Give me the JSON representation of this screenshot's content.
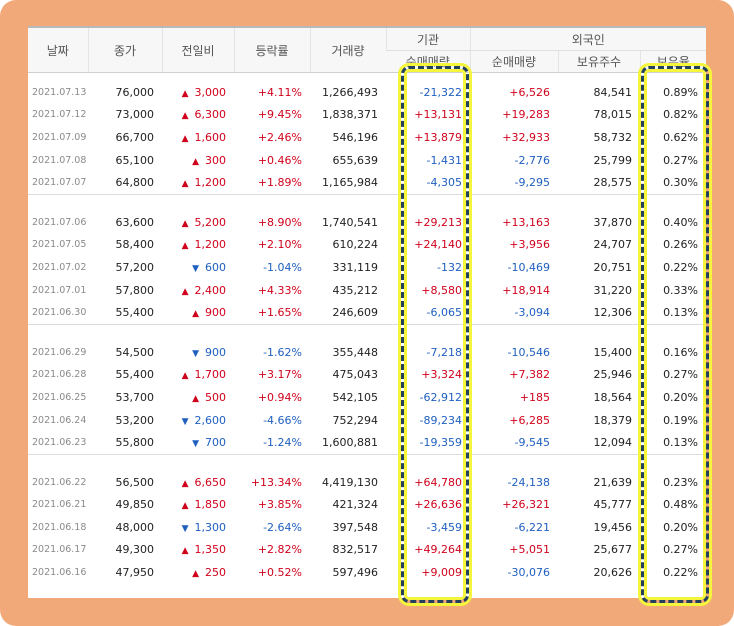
{
  "colors": {
    "up": "#d0021b",
    "down": "#1f5fbf",
    "frame": "#f2a97a",
    "highlight_dash": "#23415f",
    "highlight_glow": "#f5f53c"
  },
  "header": {
    "date": "날짜",
    "close": "종가",
    "change": "전일비",
    "rate": "등락률",
    "volume": "거래량",
    "institution": "기관",
    "foreign": "외국인",
    "inst_net": "순매매량",
    "frgn_net": "순매매량",
    "frgn_shares": "보유주수",
    "frgn_ratio": "보유율"
  },
  "groups": [
    [
      {
        "date": "2021.07.13",
        "close": "76,000",
        "dir": "up",
        "change": "3,000",
        "rate": "+4.11%",
        "volume": "1,266,493",
        "inst": "-21,322",
        "frgn": "+6,526",
        "shares": "84,541",
        "ratio": "0.89%"
      },
      {
        "date": "2021.07.12",
        "close": "73,000",
        "dir": "up",
        "change": "6,300",
        "rate": "+9.45%",
        "volume": "1,838,371",
        "inst": "+13,131",
        "frgn": "+19,283",
        "shares": "78,015",
        "ratio": "0.82%"
      },
      {
        "date": "2021.07.09",
        "close": "66,700",
        "dir": "up",
        "change": "1,600",
        "rate": "+2.46%",
        "volume": "546,196",
        "inst": "+13,879",
        "frgn": "+32,933",
        "shares": "58,732",
        "ratio": "0.62%"
      },
      {
        "date": "2021.07.08",
        "close": "65,100",
        "dir": "up",
        "change": "300",
        "rate": "+0.46%",
        "volume": "655,639",
        "inst": "-1,431",
        "frgn": "-2,776",
        "shares": "25,799",
        "ratio": "0.27%"
      },
      {
        "date": "2021.07.07",
        "close": "64,800",
        "dir": "up",
        "change": "1,200",
        "rate": "+1.89%",
        "volume": "1,165,984",
        "inst": "-4,305",
        "frgn": "-9,295",
        "shares": "28,575",
        "ratio": "0.30%"
      }
    ],
    [
      {
        "date": "2021.07.06",
        "close": "63,600",
        "dir": "up",
        "change": "5,200",
        "rate": "+8.90%",
        "volume": "1,740,541",
        "inst": "+29,213",
        "frgn": "+13,163",
        "shares": "37,870",
        "ratio": "0.40%"
      },
      {
        "date": "2021.07.05",
        "close": "58,400",
        "dir": "up",
        "change": "1,200",
        "rate": "+2.10%",
        "volume": "610,224",
        "inst": "+24,140",
        "frgn": "+3,956",
        "shares": "24,707",
        "ratio": "0.26%"
      },
      {
        "date": "2021.07.02",
        "close": "57,200",
        "dir": "down",
        "change": "600",
        "rate": "-1.04%",
        "volume": "331,119",
        "inst": "-132",
        "frgn": "-10,469",
        "shares": "20,751",
        "ratio": "0.22%"
      },
      {
        "date": "2021.07.01",
        "close": "57,800",
        "dir": "up",
        "change": "2,400",
        "rate": "+4.33%",
        "volume": "435,212",
        "inst": "+8,580",
        "frgn": "+18,914",
        "shares": "31,220",
        "ratio": "0.33%"
      },
      {
        "date": "2021.06.30",
        "close": "55,400",
        "dir": "up",
        "change": "900",
        "rate": "+1.65%",
        "volume": "246,609",
        "inst": "-6,065",
        "frgn": "-3,094",
        "shares": "12,306",
        "ratio": "0.13%"
      }
    ],
    [
      {
        "date": "2021.06.29",
        "close": "54,500",
        "dir": "down",
        "change": "900",
        "rate": "-1.62%",
        "volume": "355,448",
        "inst": "-7,218",
        "frgn": "-10,546",
        "shares": "15,400",
        "ratio": "0.16%"
      },
      {
        "date": "2021.06.28",
        "close": "55,400",
        "dir": "up",
        "change": "1,700",
        "rate": "+3.17%",
        "volume": "475,043",
        "inst": "+3,324",
        "frgn": "+7,382",
        "shares": "25,946",
        "ratio": "0.27%"
      },
      {
        "date": "2021.06.25",
        "close": "53,700",
        "dir": "up",
        "change": "500",
        "rate": "+0.94%",
        "volume": "542,105",
        "inst": "-62,912",
        "frgn": "+185",
        "shares": "18,564",
        "ratio": "0.20%"
      },
      {
        "date": "2021.06.24",
        "close": "53,200",
        "dir": "down",
        "change": "2,600",
        "rate": "-4.66%",
        "volume": "752,294",
        "inst": "-89,234",
        "frgn": "+6,285",
        "shares": "18,379",
        "ratio": "0.19%"
      },
      {
        "date": "2021.06.23",
        "close": "55,800",
        "dir": "down",
        "change": "700",
        "rate": "-1.24%",
        "volume": "1,600,881",
        "inst": "-19,359",
        "frgn": "-9,545",
        "shares": "12,094",
        "ratio": "0.13%"
      }
    ],
    [
      {
        "date": "2021.06.22",
        "close": "56,500",
        "dir": "up",
        "change": "6,650",
        "rate": "+13.34%",
        "volume": "4,419,130",
        "inst": "+64,780",
        "frgn": "-24,138",
        "shares": "21,639",
        "ratio": "0.23%"
      },
      {
        "date": "2021.06.21",
        "close": "49,850",
        "dir": "up",
        "change": "1,850",
        "rate": "+3.85%",
        "volume": "421,324",
        "inst": "+26,636",
        "frgn": "+26,321",
        "shares": "45,777",
        "ratio": "0.48%"
      },
      {
        "date": "2021.06.18",
        "close": "48,000",
        "dir": "down",
        "change": "1,300",
        "rate": "-2.64%",
        "volume": "397,548",
        "inst": "-3,459",
        "frgn": "-6,221",
        "shares": "19,456",
        "ratio": "0.20%"
      },
      {
        "date": "2021.06.17",
        "close": "49,300",
        "dir": "up",
        "change": "1,350",
        "rate": "+2.82%",
        "volume": "832,517",
        "inst": "+49,264",
        "frgn": "+5,051",
        "shares": "25,677",
        "ratio": "0.27%"
      },
      {
        "date": "2021.06.16",
        "close": "47,950",
        "dir": "up",
        "change": "250",
        "rate": "+0.52%",
        "volume": "597,496",
        "inst": "+9,009",
        "frgn": "-30,076",
        "shares": "20,626",
        "ratio": "0.22%"
      }
    ]
  ]
}
